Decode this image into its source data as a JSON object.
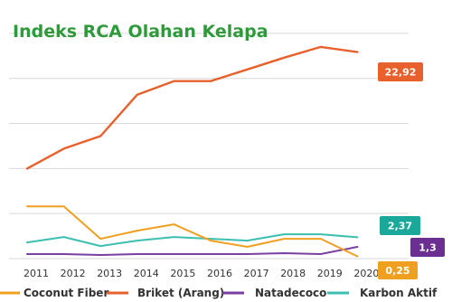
{
  "chart_data": {
    "type": "line",
    "title": "Indeks RCA Olahan Kelapa",
    "xlabel": "",
    "ylabel": "",
    "categories": [
      "2011",
      "2012",
      "2013",
      "2014",
      "2015",
      "2016",
      "2017",
      "2018",
      "2019",
      "2020"
    ],
    "ylim": [
      0,
      27.5
    ],
    "grid": true,
    "legend": "bottom",
    "series": [
      {
        "name": "Coconut Fiber",
        "color": "#f0a020",
        "values": [
          5.8,
          5.8,
          2.2,
          3.1,
          3.8,
          2.0,
          1.3,
          2.2,
          2.2,
          0.25
        ]
      },
      {
        "name": "Briket (Arang)",
        "color": "#e8602c",
        "values": [
          10.0,
          12.2,
          13.6,
          18.2,
          19.7,
          19.7,
          21.0,
          22.3,
          23.5,
          22.92
        ]
      },
      {
        "name": "Natadecoco",
        "color": "#7a3fa0",
        "values": [
          0.5,
          0.5,
          0.4,
          0.5,
          0.5,
          0.5,
          0.5,
          0.6,
          0.5,
          1.3
        ]
      },
      {
        "name": "Karbon Aktif",
        "color": "#3cbfb0",
        "values": [
          1.8,
          2.4,
          1.4,
          2.0,
          2.4,
          2.2,
          2.0,
          2.7,
          2.7,
          2.37
        ]
      }
    ],
    "data_labels": [
      {
        "series": "Briket (Arang)",
        "text": "22,92",
        "color": "#e8602c"
      },
      {
        "series": "Karbon Aktif",
        "text": "2,37",
        "color": "#1aa89a"
      },
      {
        "series": "Natadecoco",
        "text": "1,3",
        "color": "#6a2f90"
      },
      {
        "series": "Coconut Fiber",
        "text": "0,25",
        "color": "#f0a020"
      }
    ]
  }
}
